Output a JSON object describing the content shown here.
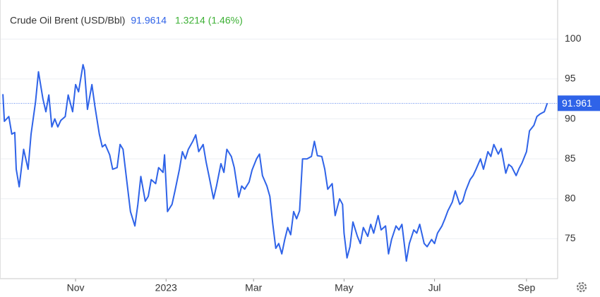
{
  "chart_data": {
    "type": "line",
    "title": "Crude Oil Brent (USD/Bbl)",
    "last_value": "91.9614",
    "change": "1.3214 (1.46%)",
    "last_label": "91.961",
    "x": [
      1,
      2,
      5,
      7,
      9,
      10,
      12,
      15,
      18,
      20,
      23,
      25,
      28,
      30,
      32,
      34,
      36,
      38,
      40,
      43,
      45,
      48,
      50,
      52,
      55,
      56,
      58,
      61,
      63,
      66,
      68,
      70,
      73,
      75,
      78,
      80,
      82,
      85,
      87,
      90,
      92,
      94,
      97,
      99,
      101,
      104,
      106,
      109,
      110,
      112,
      115,
      117,
      120,
      122,
      124,
      126,
      129,
      131,
      133,
      136,
      138,
      140,
      143,
      145,
      148,
      150,
      152,
      155,
      157,
      160,
      162,
      164,
      167,
      169,
      172,
      174,
      176,
      179,
      181,
      183,
      185,
      187,
      189,
      191,
      193,
      195,
      197,
      199,
      201,
      203,
      206,
      209,
      211,
      213,
      216,
      218,
      220,
      223,
      225,
      228,
      230,
      231,
      233,
      235,
      237,
      240,
      242,
      244,
      247,
      249,
      251,
      254,
      256,
      259,
      261,
      263,
      266,
      268,
      270,
      273,
      275,
      278,
      280,
      282,
      285,
      287,
      290,
      292,
      294,
      297,
      299,
      301,
      304,
      306,
      309,
      311,
      313,
      316,
      318,
      320,
      323,
      325,
      328,
      330,
      332,
      335,
      337,
      340,
      342,
      344,
      347,
      349,
      351,
      354,
      356,
      359,
      361,
      363,
      366,
      368
    ],
    "series": [
      {
        "color": "#2f63e8",
        "values": [
          93.1,
          89.7,
          90.3,
          88.1,
          88.3,
          83.7,
          81.5,
          86.2,
          83.7,
          88.1,
          92.1,
          95.9,
          92.5,
          90.9,
          93.0,
          89.0,
          90.0,
          89.0,
          89.8,
          90.3,
          93.0,
          90.9,
          94.3,
          93.4,
          96.8,
          96.1,
          91.2,
          94.3,
          91.6,
          88.1,
          86.5,
          86.8,
          85.5,
          83.7,
          83.9,
          86.8,
          86.2,
          81.5,
          78.4,
          76.6,
          79.3,
          82.8,
          79.7,
          80.3,
          82.4,
          81.9,
          83.9,
          83.3,
          85.5,
          78.4,
          79.3,
          81.0,
          83.7,
          85.9,
          85.0,
          86.2,
          87.2,
          88.0,
          85.9,
          86.8,
          84.6,
          82.8,
          80.0,
          81.6,
          84.4,
          83.3,
          86.2,
          85.3,
          83.9,
          80.2,
          81.6,
          81.2,
          82.1,
          83.6,
          85.0,
          85.6,
          82.9,
          81.6,
          80.3,
          76.8,
          73.8,
          74.4,
          73.1,
          74.9,
          76.4,
          75.5,
          78.4,
          77.5,
          78.5,
          85.0,
          85.0,
          85.3,
          87.2,
          85.4,
          85.3,
          83.7,
          81.2,
          81.9,
          77.9,
          80.0,
          79.3,
          75.7,
          72.6,
          74.0,
          77.1,
          75.3,
          74.4,
          76.4,
          75.3,
          76.8,
          75.7,
          77.9,
          76.1,
          76.6,
          73.1,
          74.9,
          76.6,
          76.1,
          76.8,
          72.2,
          74.4,
          76.1,
          75.7,
          76.8,
          74.4,
          74.0,
          74.9,
          74.4,
          75.7,
          76.6,
          77.5,
          78.5,
          79.6,
          81.0,
          79.3,
          79.7,
          81.0,
          82.4,
          82.9,
          83.7,
          85.0,
          83.7,
          85.9,
          85.3,
          86.8,
          85.6,
          86.3,
          83.2,
          84.3,
          84.0,
          82.9,
          83.8,
          84.5,
          85.9,
          88.5,
          89.2,
          90.3,
          90.6,
          90.9,
          91.9614
        ]
      }
    ],
    "xlim": [
      0,
      375
    ],
    "xticks": [
      {
        "value": 50,
        "label": "Nov"
      },
      {
        "value": 111,
        "label": "2023"
      },
      {
        "value": 170,
        "label": "Mar"
      },
      {
        "value": 231,
        "label": "May"
      },
      {
        "value": 292,
        "label": "Jul"
      },
      {
        "value": 354,
        "label": "Sep"
      }
    ],
    "ylim": [
      70,
      101
    ],
    "yticks": [
      75,
      80,
      85,
      90,
      95,
      100
    ],
    "grid": true
  }
}
